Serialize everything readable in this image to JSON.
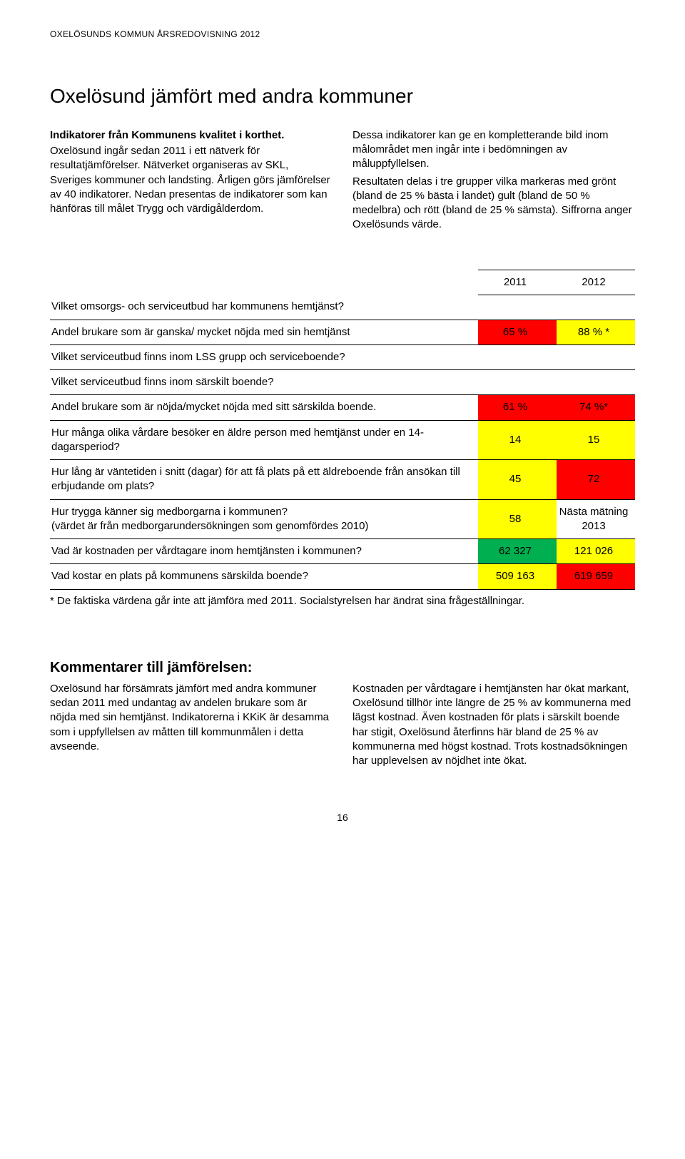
{
  "header": "OXELÖSUNDS KOMMUN ÅRSREDOVISNING 2012",
  "title": "Oxelösund jämfört med andra kommuner",
  "intro_left_bold": "Indikatorer från Kommunens kvalitet i korthet.",
  "intro_left": "Oxelösund ingår sedan 2011 i ett nätverk för resultatjämförelser. Nätverket organiseras av SKL, Sveriges kommuner och landsting. Årligen görs jämförelser av 40 indikatorer. Nedan presentas de indikatorer som kan hänföras till målet Trygg och värdigålderdom.",
  "intro_right_p1": "Dessa indikatorer kan ge en kompletterande bild inom målområdet men ingår inte i bedömningen av måluppfyllelsen.",
  "intro_right_p2": "Resultaten delas i tre grupper vilka markeras med grönt (bland de 25 % bästa i landet) gult (bland de 50 % medelbra) och rött (bland de 25 % sämsta). Siffrorna anger Oxelösunds värde.",
  "colors": {
    "green": "#00b050",
    "yellow": "#ffff00",
    "red": "#ff0000",
    "white": "#ffffff",
    "black": "#000000"
  },
  "year_a": "2011",
  "year_b": "2012",
  "rows": [
    {
      "label": "Vilket omsorgs- och serviceutbud har kommunens hemtjänst?",
      "v2011": "",
      "c2011": "white",
      "v2012": "",
      "c2012": "white"
    },
    {
      "label": "Andel brukare som är ganska/ mycket nöjda med sin hemtjänst",
      "v2011": "65 %",
      "c2011": "red",
      "v2012": "88 % *",
      "c2012": "yellow"
    },
    {
      "label": "Vilket serviceutbud finns inom LSS grupp och serviceboende?",
      "v2011": "",
      "c2011": "white",
      "v2012": "",
      "c2012": "white"
    },
    {
      "label": "Vilket serviceutbud finns inom särskilt boende?",
      "v2011": "",
      "c2011": "white",
      "v2012": "",
      "c2012": "white"
    },
    {
      "label": "Andel brukare som är nöjda/mycket nöjda med sitt särskilda boende.",
      "v2011": "61 %",
      "c2011": "red",
      "v2012": "74 %*",
      "c2012": "red"
    },
    {
      "label": "Hur många olika vårdare besöker en äldre person med hemtjänst under en 14-dagarsperiod?",
      "v2011": "14",
      "c2011": "yellow",
      "v2012": "15",
      "c2012": "yellow"
    },
    {
      "label": "Hur lång är väntetiden i snitt (dagar) för att få plats på ett äldreboende från ansökan till erbjudande om plats?",
      "v2011": "45",
      "c2011": "yellow",
      "v2012": "72",
      "c2012": "red"
    },
    {
      "label": "Hur trygga känner sig medborgarna i kommunen?\n(värdet är från medborgarundersökningen som genomfördes 2010)",
      "v2011": "58",
      "c2011": "yellow",
      "v2012": "Nästa mätning 2013",
      "c2012": "white"
    },
    {
      "label": "Vad är kostnaden per vårdtagare inom hemtjänsten i kommunen?",
      "v2011": "62 327",
      "c2011": "green",
      "v2012": "121 026",
      "c2012": "yellow"
    },
    {
      "label": "Vad kostar en plats på kommunens särskilda boende?",
      "v2011": "509 163",
      "c2011": "yellow",
      "v2012": "619 659",
      "c2012": "red"
    }
  ],
  "footnote": "* De faktiska värdena går inte att jämföra med 2011. Socialstyrelsen har ändrat sina frågeställningar.",
  "comments_title": "Kommentarer till jämförelsen:",
  "comments_left": "Oxelösund har försämrats jämfört med andra kommuner sedan 2011 med undantag av andelen brukare som är nöjda med sin hemtjänst. Indikatorerna i KKiK är desamma som i uppfyllelsen av måtten till kommunmålen i detta avseende.",
  "comments_right": "Kostnaden per vårdtagare i hemtjänsten har ökat markant, Oxelösund tillhör inte längre de 25 % av kommunerna med lägst kostnad. Även kostnaden för plats i särskilt boende har stigit, Oxelösund återfinns här bland de 25 % av kommunerna med högst kostnad. Trots kostnadsökningen har upplevelsen av nöjdhet inte ökat.",
  "page_number": "16"
}
